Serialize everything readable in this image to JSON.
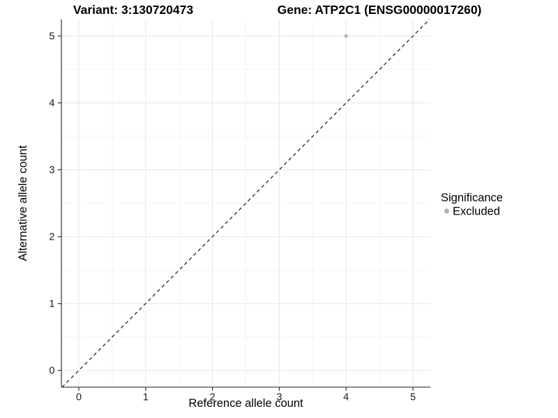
{
  "chart_data": {
    "type": "scatter",
    "titles": [
      "Variant: 3:130720473",
      "Gene: ATP2C1 (ENSG00000017260)"
    ],
    "xlabel": "Reference allele count",
    "ylabel": "Alternative allele count",
    "xlim": [
      -0.25,
      5.25
    ],
    "ylim": [
      -0.25,
      5.25
    ],
    "x_ticks": [
      "0",
      "1",
      "2",
      "3",
      "4",
      "5"
    ],
    "y_ticks": [
      "0",
      "1",
      "2",
      "3",
      "4",
      "5"
    ],
    "x_tick_values": [
      0,
      1,
      2,
      3,
      4,
      5
    ],
    "y_tick_values": [
      0,
      1,
      2,
      3,
      4,
      5
    ],
    "grid": {
      "major_color": "#e6e6e6",
      "minor_color": "#f2f2f2",
      "minor_step": 0.5,
      "background": "#ffffff"
    },
    "points": [
      {
        "x": 4,
        "y": 5,
        "significance": "Excluded"
      }
    ],
    "point_color": "#b3b3b3",
    "reference_line": {
      "kind": "identity",
      "linetype": "dashed",
      "color": "#000000",
      "from": [
        -0.25,
        -0.25
      ],
      "to": [
        5.25,
        5.25
      ]
    },
    "legend": {
      "title": "Significance",
      "position": "right",
      "items": [
        {
          "label": "Excluded",
          "color": "#b3b3b3"
        }
      ]
    },
    "colors": {
      "axis_line": "#333333",
      "tick_mark": "#333333",
      "tick_label": "#1a1a1a",
      "title_text": "#000000"
    }
  }
}
